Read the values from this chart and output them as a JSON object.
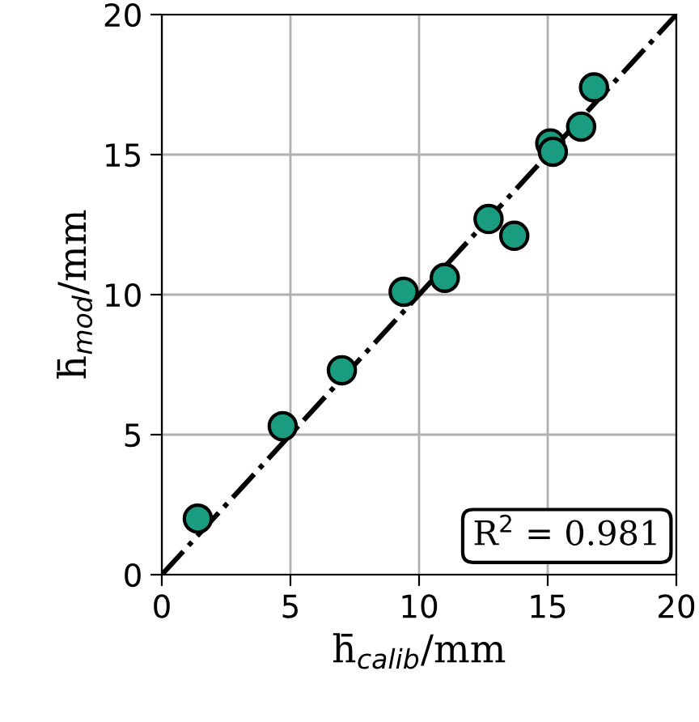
{
  "chart_data": {
    "type": "scatter",
    "xlabel": "h̄$_{calib}$/mm",
    "ylabel": "h̄$_{mod}$/mm",
    "xlim": [
      0,
      20
    ],
    "ylim": [
      0,
      20
    ],
    "xticks": [
      0,
      5,
      10,
      15,
      20
    ],
    "yticks": [
      0,
      5,
      10,
      15,
      20
    ],
    "grid": true,
    "series": [
      {
        "type": "line",
        "marker": "none",
        "line_style": "dashdot",
        "color": "#000000",
        "x": [
          0,
          20
        ],
        "values": [
          0,
          20
        ]
      },
      {
        "marker": "circle",
        "color": "#1a9c80",
        "x": [
          1.4,
          4.7,
          7.0,
          9.4,
          11.0,
          12.7,
          13.7,
          15.1,
          15.2,
          16.3,
          16.8
        ],
        "values": [
          2.0,
          5.3,
          7.3,
          10.1,
          10.6,
          12.7,
          12.1,
          15.4,
          15.1,
          16.0,
          17.4
        ]
      }
    ],
    "annotations": [
      "R$^{2}$ = 0.981"
    ]
  }
}
